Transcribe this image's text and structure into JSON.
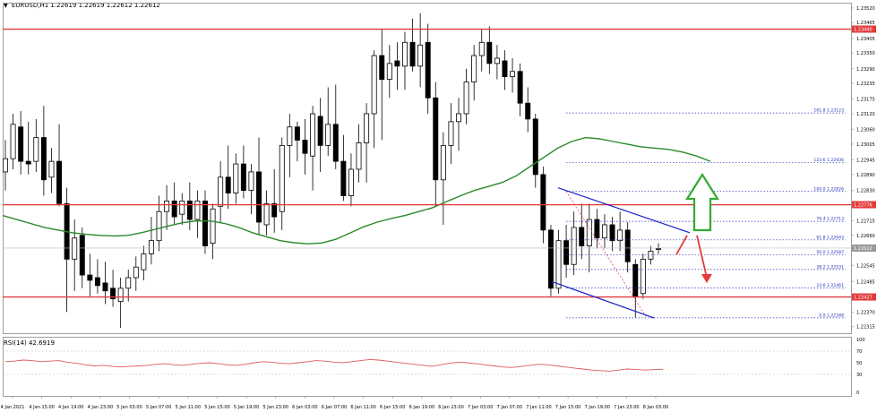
{
  "header": {
    "symbol": "EURUSD,H1",
    "ohlc": "1.22619 1.22619 1.22612 1.22612"
  },
  "rsi": {
    "label": "RSI(14) 42.6919",
    "levels": [
      "100",
      "70",
      "50",
      "30",
      "0"
    ]
  },
  "colors": {
    "candle": "#000000",
    "ma": "#2a8a2a",
    "hline": "#e23b3b",
    "channel": "#1a22c8",
    "fib": "#2233bb",
    "arrow_up": "#33aa33",
    "arrow_down": "#e23b3b",
    "rsi_line": "#e05a5a",
    "price_tag": "#e23b3b"
  },
  "chart_data": {
    "type": "candlestick",
    "symbol": "EURUSD",
    "timeframe": "H1",
    "ylim": [
      1.2229,
      1.2354
    ],
    "price_ticks": [
      "1.23520",
      "1.23465",
      "1.23405",
      "1.23350",
      "1.23290",
      "1.23235",
      "1.23175",
      "1.23120",
      "1.23060",
      "1.23005",
      "1.22945",
      "1.22890",
      "1.22830",
      "1.22776",
      "1.22715",
      "1.22660",
      "1.22605",
      "1.22545",
      "1.22485",
      "1.22430",
      "1.22370",
      "1.22315"
    ],
    "time_labels": [
      "4 Jan 2021",
      "4 Jan 15:00",
      "4 Jan 19:00",
      "4 Jan 23:00",
      "5 Jan 03:00",
      "5 Jan 07:00",
      "5 Jan 11:00",
      "5 Jan 15:00",
      "5 Jan 19:00",
      "5 Jan 23:00",
      "6 Jan 03:00",
      "6 Jan 07:00",
      "6 Jan 11:00",
      "6 Jan 15:00",
      "6 Jan 19:00",
      "6 Jan 23:00",
      "7 Jan 03:00",
      "7 Jan 07:00",
      "7 Jan 11:00",
      "7 Jan 15:00",
      "7 Jan 19:00",
      "7 Jan 23:00",
      "8 Jan 03:00"
    ],
    "horizontal_levels": [
      {
        "label": "1.23440",
        "value": 1.2344
      },
      {
        "label": "1.22776",
        "value": 1.22776
      },
      {
        "label": "1.22427",
        "value": 1.22427
      }
    ],
    "current_price": {
      "label": "1.22612",
      "value": 1.22612
    },
    "fibonacci": [
      {
        "label": "161.8 1.23123",
        "value": 1.23123
      },
      {
        "label": "123.6 1.22936",
        "value": 1.22936
      },
      {
        "label": "100.0 1.22826",
        "value": 1.22826
      },
      {
        "label": "76.4 1.22713",
        "value": 1.22713
      },
      {
        "label": "61.8 1.22643",
        "value": 1.22643
      },
      {
        "label": "50.0 1.22587",
        "value": 1.22587
      },
      {
        "label": "38.2 1.22531",
        "value": 1.22531
      },
      {
        "label": "23.6 1.22461",
        "value": 1.22461
      },
      {
        "label": "0.0 1.22348",
        "value": 1.22348
      }
    ],
    "candles": [
      [
        1.229,
        1.2302,
        1.2283,
        1.2295
      ],
      [
        1.2295,
        1.2312,
        1.2291,
        1.2308
      ],
      [
        1.2307,
        1.2313,
        1.2289,
        1.2294
      ],
      [
        1.2294,
        1.2309,
        1.2289,
        1.2293
      ],
      [
        1.2294,
        1.231,
        1.229,
        1.2303
      ],
      [
        1.2303,
        1.2315,
        1.2281,
        1.2287
      ],
      [
        1.2288,
        1.2299,
        1.2282,
        1.2294
      ],
      [
        1.2294,
        1.2308,
        1.2277,
        1.2278
      ],
      [
        1.2278,
        1.2284,
        1.2237,
        1.2257
      ],
      [
        1.2257,
        1.2272,
        1.2245,
        1.2265
      ],
      [
        1.2266,
        1.2269,
        1.2246,
        1.2251
      ],
      [
        1.2251,
        1.2259,
        1.2243,
        1.2249
      ],
      [
        1.225,
        1.2257,
        1.2244,
        1.2247
      ],
      [
        1.2248,
        1.2256,
        1.224,
        1.2245
      ],
      [
        1.2246,
        1.2253,
        1.2239,
        1.2242
      ],
      [
        1.2241,
        1.225,
        1.2231,
        1.2246
      ],
      [
        1.2246,
        1.2253,
        1.2241,
        1.225
      ],
      [
        1.225,
        1.2258,
        1.2245,
        1.2254
      ],
      [
        1.2253,
        1.2262,
        1.2249,
        1.2259
      ],
      [
        1.2259,
        1.2273,
        1.2255,
        1.2264
      ],
      [
        1.2264,
        1.2281,
        1.226,
        1.2275
      ],
      [
        1.2275,
        1.2285,
        1.2268,
        1.2279
      ],
      [
        1.2279,
        1.2286,
        1.227,
        1.2273
      ],
      [
        1.2274,
        1.2282,
        1.227,
        1.2279
      ],
      [
        1.2279,
        1.2286,
        1.2268,
        1.2272
      ],
      [
        1.2272,
        1.2283,
        1.2265,
        1.2279
      ],
      [
        1.2279,
        1.2283,
        1.2259,
        1.2262
      ],
      [
        1.2263,
        1.2278,
        1.2257,
        1.2276
      ],
      [
        1.2277,
        1.2294,
        1.2271,
        1.2288
      ],
      [
        1.2288,
        1.23,
        1.2276,
        1.2282
      ],
      [
        1.2282,
        1.2297,
        1.2278,
        1.2293
      ],
      [
        1.2293,
        1.23,
        1.228,
        1.2283
      ],
      [
        1.2283,
        1.2293,
        1.2274,
        1.229
      ],
      [
        1.229,
        1.2303,
        1.2266,
        1.2271
      ],
      [
        1.227,
        1.2283,
        1.2266,
        1.2278
      ],
      [
        1.2278,
        1.2291,
        1.2267,
        1.2273
      ],
      [
        1.2275,
        1.2303,
        1.2268,
        1.23
      ],
      [
        1.23,
        1.2312,
        1.2288,
        1.2307
      ],
      [
        1.2307,
        1.2309,
        1.2294,
        1.2302
      ],
      [
        1.2302,
        1.231,
        1.2289,
        1.2297
      ],
      [
        1.2296,
        1.2315,
        1.2283,
        1.2312
      ],
      [
        1.2311,
        1.2318,
        1.229,
        1.23
      ],
      [
        1.23,
        1.2322,
        1.2296,
        1.2308
      ],
      [
        1.2308,
        1.2323,
        1.2291,
        1.2294
      ],
      [
        1.2294,
        1.2304,
        1.2279,
        1.2281
      ],
      [
        1.2281,
        1.2297,
        1.2277,
        1.2291
      ],
      [
        1.2291,
        1.2308,
        1.2286,
        1.2301
      ],
      [
        1.2301,
        1.2316,
        1.2286,
        1.2312
      ],
      [
        1.2312,
        1.2336,
        1.2299,
        1.2334
      ],
      [
        1.2334,
        1.2344,
        1.2302,
        1.2325
      ],
      [
        1.2325,
        1.2338,
        1.2318,
        1.2331
      ],
      [
        1.2332,
        1.2339,
        1.2321,
        1.233
      ],
      [
        1.233,
        1.2343,
        1.2321,
        1.2339
      ],
      [
        1.2339,
        1.2348,
        1.2328,
        1.233
      ],
      [
        1.233,
        1.235,
        1.2322,
        1.2338
      ],
      [
        1.2339,
        1.2346,
        1.2312,
        1.2318
      ],
      [
        1.2318,
        1.2324,
        1.2277,
        1.2287
      ],
      [
        1.2287,
        1.2305,
        1.227,
        1.23
      ],
      [
        1.23,
        1.2316,
        1.2293,
        1.2309
      ],
      [
        1.2309,
        1.2318,
        1.2298,
        1.2312
      ],
      [
        1.2312,
        1.2329,
        1.2308,
        1.2324
      ],
      [
        1.2324,
        1.2338,
        1.2317,
        1.2334
      ],
      [
        1.2334,
        1.2344,
        1.2328,
        1.2339
      ],
      [
        1.2339,
        1.2345,
        1.2327,
        1.2331
      ],
      [
        1.2331,
        1.2338,
        1.2325,
        1.2333
      ],
      [
        1.2332,
        1.2336,
        1.2321,
        1.2326
      ],
      [
        1.2326,
        1.2333,
        1.232,
        1.2328
      ],
      [
        1.2328,
        1.2331,
        1.2311,
        1.2316
      ],
      [
        1.2316,
        1.2322,
        1.2305,
        1.231
      ],
      [
        1.231,
        1.2312,
        1.2284,
        1.2289
      ],
      [
        1.2289,
        1.2292,
        1.2263,
        1.2268
      ],
      [
        1.2268,
        1.227,
        1.2243,
        1.2246
      ],
      [
        1.2246,
        1.2268,
        1.2244,
        1.2264
      ],
      [
        1.2264,
        1.227,
        1.225,
        1.2255
      ],
      [
        1.2255,
        1.2275,
        1.2251,
        1.2269
      ],
      [
        1.2269,
        1.2278,
        1.2257,
        1.2262
      ],
      [
        1.2262,
        1.2278,
        1.2252,
        1.2272
      ],
      [
        1.2272,
        1.2276,
        1.2261,
        1.2265
      ],
      [
        1.2265,
        1.2274,
        1.2261,
        1.227
      ],
      [
        1.227,
        1.2273,
        1.226,
        1.2264
      ],
      [
        1.2264,
        1.2275,
        1.226,
        1.2268
      ],
      [
        1.2268,
        1.2271,
        1.2252,
        1.2256
      ],
      [
        1.2255,
        1.2257,
        1.2235,
        1.2243
      ],
      [
        1.2244,
        1.2259,
        1.2242,
        1.2257
      ],
      [
        1.2257,
        1.2262,
        1.2255,
        1.226
      ],
      [
        1.2261,
        1.2263,
        1.2259,
        1.2261
      ]
    ],
    "moving_average": {
      "values": [
        1.22735,
        1.2272,
        1.22705,
        1.2269,
        1.2268,
        1.2267,
        1.22664,
        1.2266,
        1.22658,
        1.2266,
        1.2267,
        1.22683,
        1.22696,
        1.22708,
        1.22715,
        1.22714,
        1.22705,
        1.2269,
        1.2267,
        1.22655,
        1.2264,
        1.22632,
        1.22628,
        1.22631,
        1.22645,
        1.22668,
        1.22692,
        1.2271,
        1.22724,
        1.22735,
        1.2275,
        1.22765,
        1.22788,
        1.2281,
        1.2283,
        1.22845,
        1.2286,
        1.22885,
        1.2292,
        1.22955,
        1.2299,
        1.23015,
        1.2303,
        1.23025,
        1.23015,
        1.23005,
        1.22995,
        1.2299,
        1.22985,
        1.22975,
        1.2296,
        1.2294
      ]
    }
  }
}
